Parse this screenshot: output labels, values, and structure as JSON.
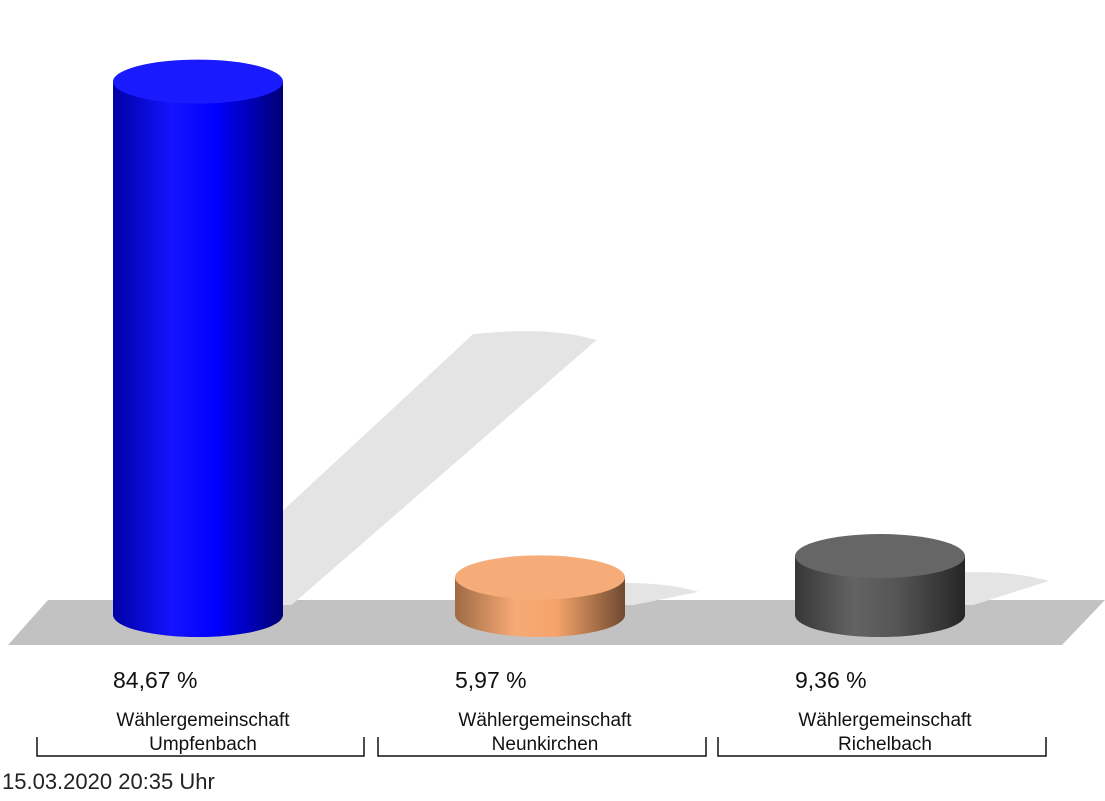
{
  "chart_data": {
    "type": "bar",
    "categories": [
      [
        "Wählergemeinschaft",
        "Umpfenbach"
      ],
      [
        "Wählergemeinschaft",
        "Neunkirchen"
      ],
      [
        "Wählergemeinschaft",
        "Richelbach"
      ]
    ],
    "values": [
      84.67,
      5.97,
      9.36
    ],
    "value_labels": [
      "84,67 %",
      "5,97 %",
      "9,36 %"
    ],
    "colors": [
      "#0000ff",
      "#f5a36a",
      "#555555"
    ],
    "ylim": [
      0,
      100
    ],
    "grid": false,
    "legend": "none",
    "style": "3d-cylinder",
    "timestamp": "15.03.2020 20:35 Uhr"
  }
}
